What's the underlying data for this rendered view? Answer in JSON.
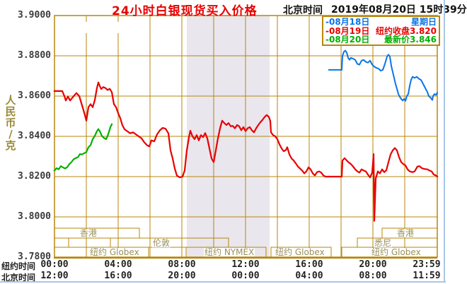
{
  "header": {
    "title": "24小时白银现货买入价格",
    "clock_label": "北京时间",
    "clock_value": "2019年08月20日 15时39分"
  },
  "y_axis": {
    "unit_label": "人民币/克",
    "ticks": [
      "3.9000",
      "3.8800",
      "3.8600",
      "3.8400",
      "3.8200",
      "3.8000",
      "3.7800"
    ]
  },
  "x_axis": {
    "ny_label": "纽约时间",
    "bj_label": "北京时间",
    "ny_times": [
      "00:00",
      "04:00",
      "08:00",
      "12:00",
      "16:00",
      "20:00",
      "23:59"
    ],
    "bj_times": [
      "12:00",
      "16:00",
      "20:00",
      "00:00",
      "04:00",
      "08:00",
      "11:59"
    ],
    "tick_x": [
      77,
      167,
      257,
      347,
      437,
      527,
      603
    ]
  },
  "legend": {
    "items": [
      {
        "label": "-08月18日",
        "desc": "星期日",
        "color": "#0a74e8"
      },
      {
        "label": "-08月19日",
        "desc": "纽约收盘3.820",
        "color": "#e80000"
      },
      {
        "label": "-08月20日",
        "desc": "最新价3.846",
        "color": "#00b000"
      }
    ]
  },
  "colors": {
    "grid": "#b8860b",
    "band": "#e9e6ee",
    "frame": "#a9c7e7",
    "title": "#e80000",
    "red_line": "#e80000",
    "green_line": "#00b000",
    "blue_line": "#0a74e8",
    "session_text": "#99905e",
    "axis_text": "#3a3a3a"
  },
  "chart_data": {
    "type": "line",
    "title": "24小时白银现货买入价格",
    "ylabel": "人民币/克",
    "ylim": [
      3.78,
      3.9
    ],
    "y_ticks": [
      3.9,
      3.88,
      3.86,
      3.84,
      3.82,
      3.8,
      3.78
    ],
    "x_ticks_ny": [
      "00:00",
      "04:00",
      "08:00",
      "12:00",
      "16:00",
      "20:00",
      "23:59"
    ],
    "x_ticks_bj": [
      "12:00",
      "16:00",
      "20:00",
      "00:00",
      "04:00",
      "08:00",
      "11:59"
    ],
    "legend_position": "top-right",
    "grid": true,
    "points_format": "[x_px, price_rmb_per_gram]; x=77 is 00:00 NY time, 22.5px per hour, x=618 is 24:00",
    "plot": {
      "x_left": 77,
      "x_right": 618,
      "y_top": 22,
      "y_bottom": 364,
      "ymin": 3.78,
      "ymax": 3.9,
      "v_step": 45,
      "v_count": 13,
      "h_step": 57,
      "h_count": 7
    },
    "shaded_bands": [
      {
        "x1": 264,
        "x2": 381
      }
    ],
    "watermark_blank": {
      "x": 78,
      "y": 31,
      "w": 98,
      "h": 16
    },
    "series": [
      {
        "name": "08月18日 星期日",
        "color": "#0a74e8",
        "width": 2,
        "points": [
          [
            465,
            3.873
          ],
          [
            483,
            3.873
          ],
          [
            484,
            3.88
          ],
          [
            486,
            3.882
          ],
          [
            488,
            3.8826
          ],
          [
            490,
            3.8816
          ],
          [
            492,
            3.879
          ],
          [
            494,
            3.878
          ],
          [
            496,
            3.879
          ],
          [
            499,
            3.8786
          ],
          [
            502,
            3.878
          ],
          [
            505,
            3.876
          ],
          [
            508,
            3.8756
          ],
          [
            511,
            3.8776
          ],
          [
            514,
            3.878
          ],
          [
            517,
            3.877
          ],
          [
            520,
            3.8766
          ],
          [
            523,
            3.8776
          ],
          [
            526,
            3.8756
          ],
          [
            529,
            3.8746
          ],
          [
            532,
            3.874
          ],
          [
            535,
            3.8736
          ],
          [
            538,
            3.8726
          ],
          [
            541,
            3.873
          ],
          [
            544,
            3.876
          ],
          [
            547,
            3.8796
          ],
          [
            549,
            3.8806
          ],
          [
            551,
            3.8796
          ],
          [
            553,
            3.875
          ],
          [
            555,
            3.872
          ],
          [
            557,
            3.869
          ],
          [
            559,
            3.866
          ],
          [
            561,
            3.8636
          ],
          [
            563,
            3.861
          ],
          [
            565,
            3.8596
          ],
          [
            567,
            3.8586
          ],
          [
            569,
            3.8578
          ],
          [
            571,
            3.8586
          ],
          [
            573,
            3.8576
          ],
          [
            575,
            3.86
          ],
          [
            577,
            3.861
          ],
          [
            579,
            3.865
          ],
          [
            581,
            3.868
          ],
          [
            583,
            3.8696
          ],
          [
            586,
            3.869
          ],
          [
            589,
            3.8696
          ],
          [
            592,
            3.8686
          ],
          [
            595,
            3.868
          ],
          [
            598,
            3.866
          ],
          [
            601,
            3.864
          ],
          [
            604,
            3.862
          ],
          [
            606,
            3.86
          ],
          [
            609,
            3.859
          ],
          [
            611,
            3.858
          ],
          [
            612,
            3.86
          ],
          [
            614,
            3.861
          ],
          [
            616,
            3.8606
          ],
          [
            618,
            3.8616
          ]
        ]
      },
      {
        "name": "08月19日 纽约收盘3.820",
        "color": "#e80000",
        "width": 2.2,
        "points": [
          [
            77,
            3.8625
          ],
          [
            88,
            3.8625
          ],
          [
            91,
            3.86
          ],
          [
            93,
            3.8578
          ],
          [
            96,
            3.8598
          ],
          [
            99,
            3.8578
          ],
          [
            103,
            3.8595
          ],
          [
            108,
            3.8615
          ],
          [
            112,
            3.86
          ],
          [
            115,
            3.8565
          ],
          [
            118,
            3.853
          ],
          [
            120,
            3.8505
          ],
          [
            122,
            3.8478
          ],
          [
            125,
            3.8545
          ],
          [
            128,
            3.856
          ],
          [
            131,
            3.8545
          ],
          [
            134,
            3.858
          ],
          [
            137,
            3.864
          ],
          [
            139,
            3.8668
          ],
          [
            141,
            3.865
          ],
          [
            143,
            3.8635
          ],
          [
            146,
            3.8645
          ],
          [
            149,
            3.864
          ],
          [
            152,
            3.863
          ],
          [
            155,
            3.8636
          ],
          [
            158,
            3.862
          ],
          [
            161,
            3.856
          ],
          [
            164,
            3.8545
          ],
          [
            167,
            3.8515
          ],
          [
            170,
            3.849
          ],
          [
            173,
            3.8455
          ],
          [
            176,
            3.8435
          ],
          [
            180,
            3.8425
          ],
          [
            184,
            3.8415
          ],
          [
            188,
            3.842
          ],
          [
            192,
            3.841
          ],
          [
            196,
            3.84
          ],
          [
            200,
            3.839
          ],
          [
            204,
            3.837
          ],
          [
            208,
            3.8355
          ],
          [
            211,
            3.835
          ],
          [
            214,
            3.838
          ],
          [
            218,
            3.8375
          ],
          [
            222,
            3.841
          ],
          [
            226,
            3.843
          ],
          [
            230,
            3.8442
          ],
          [
            234,
            3.8438
          ],
          [
            238,
            3.8415
          ],
          [
            241,
            3.833
          ],
          [
            244,
            3.829
          ],
          [
            247,
            3.824
          ],
          [
            250,
            3.8205
          ],
          [
            254,
            3.8196
          ],
          [
            258,
            3.82
          ],
          [
            261,
            3.823
          ],
          [
            264,
            3.833
          ],
          [
            267,
            3.8395
          ],
          [
            269,
            3.8428
          ],
          [
            272,
            3.84
          ],
          [
            275,
            3.8386
          ],
          [
            278,
            3.8406
          ],
          [
            281,
            3.838
          ],
          [
            284,
            3.8406
          ],
          [
            287,
            3.8396
          ],
          [
            290,
            3.8416
          ],
          [
            293,
            3.839
          ],
          [
            296,
            3.834
          ],
          [
            299,
            3.829
          ],
          [
            302,
            3.8272
          ],
          [
            305,
            3.833
          ],
          [
            308,
            3.839
          ],
          [
            311,
            3.844
          ],
          [
            314,
            3.8478
          ],
          [
            317,
            3.8466
          ],
          [
            320,
            3.8456
          ],
          [
            323,
            3.8466
          ],
          [
            326,
            3.845
          ],
          [
            329,
            3.8452
          ],
          [
            332,
            3.844
          ],
          [
            335,
            3.8456
          ],
          [
            338,
            3.845
          ],
          [
            341,
            3.843
          ],
          [
            344,
            3.8446
          ],
          [
            347,
            3.8426
          ],
          [
            350,
            3.844
          ],
          [
            353,
            3.8446
          ],
          [
            356,
            3.843
          ],
          [
            359,
            3.842
          ],
          [
            362,
            3.844
          ],
          [
            365,
            3.8456
          ],
          [
            368,
            3.847
          ],
          [
            371,
            3.8482
          ],
          [
            374,
            3.8496
          ],
          [
            377,
            3.8506
          ],
          [
            380,
            3.8496
          ],
          [
            382,
            3.8476
          ],
          [
            383,
            3.842
          ],
          [
            386,
            3.8406
          ],
          [
            389,
            3.84
          ],
          [
            392,
            3.8386
          ],
          [
            395,
            3.836
          ],
          [
            398,
            3.834
          ],
          [
            401,
            3.8326
          ],
          [
            404,
            3.8332
          ],
          [
            406,
            3.8346
          ],
          [
            409,
            3.831
          ],
          [
            412,
            3.829
          ],
          [
            415,
            3.828
          ],
          [
            418,
            3.8266
          ],
          [
            421,
            3.825
          ],
          [
            424,
            3.824
          ],
          [
            427,
            3.823
          ],
          [
            430,
            3.8216
          ],
          [
            433,
            3.8226
          ],
          [
            436,
            3.8246
          ],
          [
            439,
            3.8236
          ],
          [
            442,
            3.8216
          ],
          [
            445,
            3.8206
          ],
          [
            448,
            3.8222
          ],
          [
            451,
            3.8226
          ],
          [
            454,
            3.822
          ],
          [
            457,
            3.8206
          ],
          [
            460,
            3.82
          ],
          [
            483,
            3.82
          ],
          [
            484,
            3.828
          ],
          [
            487,
            3.8292
          ],
          [
            490,
            3.828
          ],
          [
            493,
            3.827
          ],
          [
            496,
            3.8262
          ],
          [
            499,
            3.825
          ],
          [
            502,
            3.8236
          ],
          [
            505,
            3.8226
          ],
          [
            508,
            3.822
          ],
          [
            511,
            3.8236
          ],
          [
            514,
            3.823
          ],
          [
            517,
            3.8226
          ],
          [
            520,
            3.821
          ],
          [
            523,
            3.8196
          ],
          [
            526,
            3.822
          ],
          [
            528,
            3.8312
          ],
          [
            529,
            3.798
          ],
          [
            531,
            3.819
          ],
          [
            534,
            3.8226
          ],
          [
            537,
            3.8216
          ],
          [
            540,
            3.8236
          ],
          [
            543,
            3.8222
          ],
          [
            546,
            3.8232
          ],
          [
            549,
            3.8272
          ],
          [
            552,
            3.831
          ],
          [
            555,
            3.833
          ],
          [
            558,
            3.8342
          ],
          [
            561,
            3.833
          ],
          [
            564,
            3.8296
          ],
          [
            567,
            3.8272
          ],
          [
            570,
            3.8262
          ],
          [
            573,
            3.8256
          ],
          [
            576,
            3.8236
          ],
          [
            579,
            3.8226
          ],
          [
            583,
            3.8222
          ],
          [
            586,
            3.8226
          ],
          [
            590,
            3.825
          ],
          [
            593,
            3.8252
          ],
          [
            596,
            3.8242
          ],
          [
            600,
            3.8238
          ],
          [
            604,
            3.8236
          ],
          [
            607,
            3.823
          ],
          [
            610,
            3.8226
          ],
          [
            613,
            3.821
          ],
          [
            616,
            3.8206
          ],
          [
            618,
            3.82
          ]
        ]
      },
      {
        "name": "08月20日 最新价3.846",
        "color": "#00b000",
        "width": 2.2,
        "points": [
          [
            77,
            3.823
          ],
          [
            80,
            3.8242
          ],
          [
            83,
            3.8236
          ],
          [
            86,
            3.8252
          ],
          [
            89,
            3.8246
          ],
          [
            92,
            3.824
          ],
          [
            95,
            3.8247
          ],
          [
            98,
            3.8262
          ],
          [
            101,
            3.8272
          ],
          [
            104,
            3.8286
          ],
          [
            107,
            3.8292
          ],
          [
            110,
            3.8296
          ],
          [
            113,
            3.8312
          ],
          [
            116,
            3.831
          ],
          [
            119,
            3.8316
          ],
          [
            122,
            3.8322
          ],
          [
            125,
            3.8346
          ],
          [
            128,
            3.8356
          ],
          [
            131,
            3.8386
          ],
          [
            134,
            3.8402
          ],
          [
            137,
            3.8426
          ],
          [
            139,
            3.8436
          ],
          [
            141,
            3.8426
          ],
          [
            144,
            3.8402
          ],
          [
            147,
            3.8392
          ],
          [
            150,
            3.8386
          ],
          [
            152,
            3.8402
          ],
          [
            154,
            3.8422
          ],
          [
            156,
            3.8446
          ],
          [
            158,
            3.846
          ]
        ]
      }
    ],
    "sessions": {
      "row_bounds": [
        [
          323,
          337
        ],
        [
          337,
          350
        ],
        [
          350,
          364
        ]
      ],
      "boxes": [
        {
          "label": "香港",
          "x1": 77,
          "x2": 197,
          "row": 0,
          "lx": 112
        },
        {
          "label": "香港",
          "x1": 540,
          "x2": 618,
          "row": 0,
          "lx": 560
        },
        {
          "label": "",
          "x1": 77,
          "x2": 97,
          "row": 1,
          "lx": 0
        },
        {
          "label": "伦敦",
          "x1": 156,
          "x2": 323,
          "row": 1,
          "lx": 215
        },
        {
          "label": "悉尼",
          "x1": 505,
          "x2": 572,
          "row": 1,
          "lx": 528
        },
        {
          "label": "纽约 Globex",
          "x1": 77,
          "x2": 210,
          "row": 2,
          "lx": 126
        },
        {
          "label": "纽约 NYMEX",
          "x1": 263,
          "x2": 376,
          "row": 2,
          "lx": 288
        },
        {
          "label": "纽约 Globex",
          "x1": 383,
          "x2": 468,
          "row": 2,
          "lx": 388
        },
        {
          "label": "纽约 Globex",
          "x1": 483,
          "x2": 618,
          "row": 2,
          "lx": 524
        }
      ]
    }
  }
}
